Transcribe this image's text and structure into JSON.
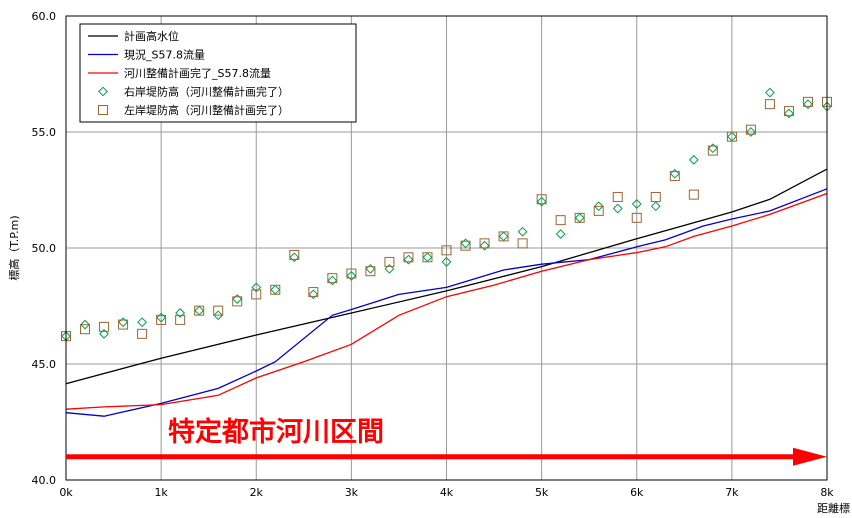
{
  "chart_data": {
    "type": "line",
    "title": "",
    "xlabel": "距離標",
    "ylabel": "標高（T.P.m)",
    "xlim": [
      0,
      8
    ],
    "ylim": [
      40,
      60
    ],
    "x_ticks": [
      {
        "value": 0,
        "label": "0k"
      },
      {
        "value": 1,
        "label": "1k"
      },
      {
        "value": 2,
        "label": "2k"
      },
      {
        "value": 3,
        "label": "3k"
      },
      {
        "value": 4,
        "label": "4k"
      },
      {
        "value": 5,
        "label": "5k"
      },
      {
        "value": 6,
        "label": "6k"
      },
      {
        "value": 7,
        "label": "7k"
      },
      {
        "value": 8,
        "label": "8k"
      }
    ],
    "y_ticks": [
      {
        "value": 40,
        "label": "40.0"
      },
      {
        "value": 45,
        "label": "45.0"
      },
      {
        "value": 50,
        "label": "50.0"
      },
      {
        "value": 55,
        "label": "55.0"
      },
      {
        "value": 60,
        "label": "60.0"
      }
    ],
    "grid": true,
    "legend_position": "top-left",
    "series": [
      {
        "name": "計画高水位",
        "kind": "line",
        "color": "#000000",
        "x": [
          0,
          1,
          2,
          3,
          4,
          5,
          6,
          7,
          7.4,
          8
        ],
        "y": [
          44.15,
          45.25,
          46.25,
          47.2,
          48.15,
          49.2,
          50.4,
          51.55,
          52.1,
          53.4
        ]
      },
      {
        "name": "現況_S57.8流量",
        "kind": "line",
        "color": "#0000cc",
        "x": [
          0,
          0.4,
          1.0,
          1.6,
          2.0,
          2.2,
          2.8,
          3.0,
          3.5,
          4.0,
          4.6,
          5.0,
          5.5,
          6.0,
          6.3,
          6.7,
          7.0,
          7.4,
          8.0
        ],
        "y": [
          42.9,
          42.75,
          43.3,
          43.95,
          44.7,
          45.1,
          47.1,
          47.35,
          48.0,
          48.3,
          49.05,
          49.3,
          49.5,
          50.05,
          50.35,
          50.95,
          51.25,
          51.6,
          52.55
        ]
      },
      {
        "name": "河川整備計画完了_S57.8流量",
        "kind": "line",
        "color": "#ff0000",
        "x": [
          0,
          0.4,
          1.0,
          1.6,
          2.0,
          2.5,
          3.0,
          3.5,
          4.0,
          4.5,
          5.0,
          5.5,
          6.0,
          6.3,
          6.6,
          7.0,
          7.4,
          8.0
        ],
        "y": [
          43.05,
          43.15,
          43.25,
          43.65,
          44.4,
          45.1,
          45.85,
          47.1,
          47.9,
          48.4,
          49.0,
          49.5,
          49.8,
          50.05,
          50.5,
          50.95,
          51.45,
          52.35
        ]
      },
      {
        "name": "右岸堤防高（河川整備計画完了）",
        "kind": "marker",
        "marker": "diamond",
        "color": "#00a050",
        "x": [
          0,
          0.2,
          0.4,
          0.6,
          0.8,
          1.0,
          1.2,
          1.4,
          1.6,
          1.8,
          2.0,
          2.2,
          2.4,
          2.6,
          2.8,
          3.0,
          3.2,
          3.4,
          3.6,
          3.8,
          4.0,
          4.2,
          4.4,
          4.6,
          4.8,
          5.0,
          5.2,
          5.4,
          5.6,
          5.8,
          6.0,
          6.2,
          6.4,
          6.6,
          6.8,
          7.0,
          7.2,
          7.4,
          7.6,
          7.8,
          8.0
        ],
        "y": [
          46.2,
          46.7,
          46.3,
          46.8,
          46.8,
          47.0,
          47.2,
          47.3,
          47.1,
          47.8,
          48.3,
          48.2,
          49.6,
          48.0,
          48.6,
          48.8,
          49.1,
          49.1,
          49.5,
          49.6,
          49.4,
          50.2,
          50.1,
          50.5,
          50.7,
          52.0,
          50.6,
          51.3,
          51.8,
          51.7,
          51.9,
          51.8,
          53.2,
          53.8,
          54.3,
          54.8,
          55.0,
          56.7,
          55.8,
          56.2,
          56.1
        ]
      },
      {
        "name": "左岸堤防高（河川整備計画完了）",
        "kind": "marker",
        "marker": "square",
        "color": "#996633",
        "x": [
          0,
          0.2,
          0.4,
          0.6,
          0.8,
          1.0,
          1.2,
          1.4,
          1.6,
          1.8,
          2.0,
          2.2,
          2.4,
          2.6,
          2.8,
          3.0,
          3.2,
          3.4,
          3.6,
          3.8,
          4.0,
          4.2,
          4.4,
          4.6,
          4.8,
          5.0,
          5.2,
          5.4,
          5.6,
          5.8,
          6.0,
          6.2,
          6.4,
          6.6,
          6.8,
          7.0,
          7.2,
          7.4,
          7.6,
          7.8,
          8.0
        ],
        "y": [
          46.2,
          46.5,
          46.6,
          46.7,
          46.3,
          46.9,
          46.9,
          47.3,
          47.3,
          47.7,
          48.0,
          48.2,
          49.7,
          48.1,
          48.7,
          48.9,
          49.0,
          49.4,
          49.6,
          49.6,
          49.9,
          50.1,
          50.2,
          50.5,
          50.2,
          52.1,
          51.2,
          51.3,
          51.6,
          52.2,
          51.3,
          52.2,
          53.1,
          52.3,
          54.2,
          54.8,
          55.1,
          56.2,
          55.9,
          56.3,
          56.3
        ]
      }
    ],
    "annotation": {
      "text": "特定都市河川区間",
      "color": "#ff0000",
      "arrow_y": 41.0,
      "arrow_x": [
        0,
        8
      ]
    }
  }
}
